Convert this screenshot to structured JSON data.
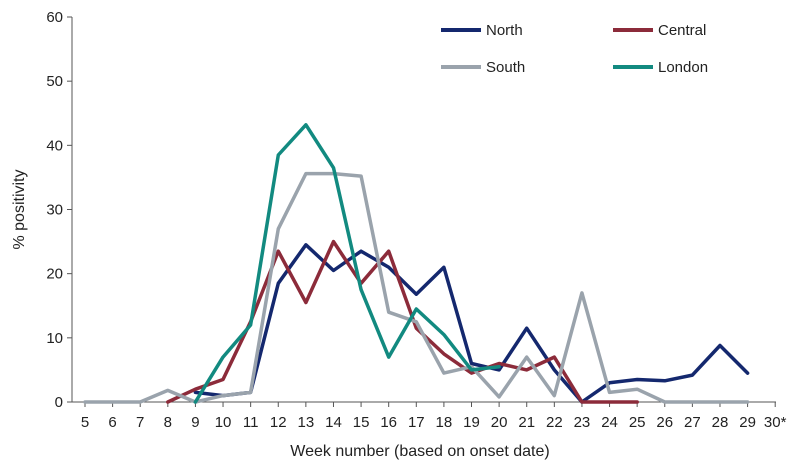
{
  "chart_data": {
    "type": "line",
    "xlabel": "Week number (based on onset date)",
    "ylabel": "% positivity",
    "ylim": [
      0,
      60
    ],
    "yticks": [
      0,
      10,
      20,
      30,
      40,
      50,
      60
    ],
    "categories": [
      "5",
      "6",
      "7",
      "8",
      "9",
      "10",
      "11",
      "12",
      "13",
      "14",
      "15",
      "16",
      "17",
      "18",
      "19",
      "20",
      "21",
      "22",
      "23",
      "24",
      "25",
      "26",
      "27",
      "28",
      "29",
      "30*"
    ],
    "grid": false,
    "legend_position": "top-right",
    "series": [
      {
        "name": "North",
        "color": "#14286e",
        "values": [
          null,
          null,
          null,
          null,
          1.5,
          1.0,
          1.5,
          18.5,
          24.5,
          20.5,
          23.5,
          21.0,
          16.8,
          21.0,
          6.0,
          5.0,
          11.5,
          5.0,
          0.0,
          3.0,
          3.5,
          3.3,
          4.2,
          8.8,
          4.5,
          null
        ]
      },
      {
        "name": "Central",
        "color": "#8c2b3a",
        "values": [
          null,
          null,
          null,
          0.0,
          2.0,
          3.5,
          12.5,
          23.5,
          15.5,
          25.0,
          18.5,
          23.5,
          11.5,
          7.5,
          4.5,
          6.0,
          5.0,
          7.0,
          0.0,
          0.0,
          0.0,
          null,
          null,
          null,
          null,
          null
        ]
      },
      {
        "name": "South",
        "color": "#9aa3ac",
        "values": [
          0.0,
          0.0,
          0.0,
          1.8,
          0.0,
          1.0,
          1.5,
          27.0,
          35.6,
          35.6,
          35.2,
          14.0,
          12.5,
          4.5,
          5.5,
          0.8,
          7.0,
          1.0,
          17.0,
          1.5,
          2.0,
          0.0,
          0.0,
          0.0,
          0.0,
          null
        ]
      },
      {
        "name": "London",
        "color": "#128a80",
        "values": [
          null,
          null,
          null,
          null,
          0.0,
          7.0,
          12.0,
          38.5,
          43.2,
          36.5,
          17.5,
          7.0,
          14.5,
          10.5,
          5.0,
          5.5,
          null,
          null,
          null,
          null,
          null,
          null,
          null,
          null,
          null,
          null
        ]
      }
    ]
  }
}
